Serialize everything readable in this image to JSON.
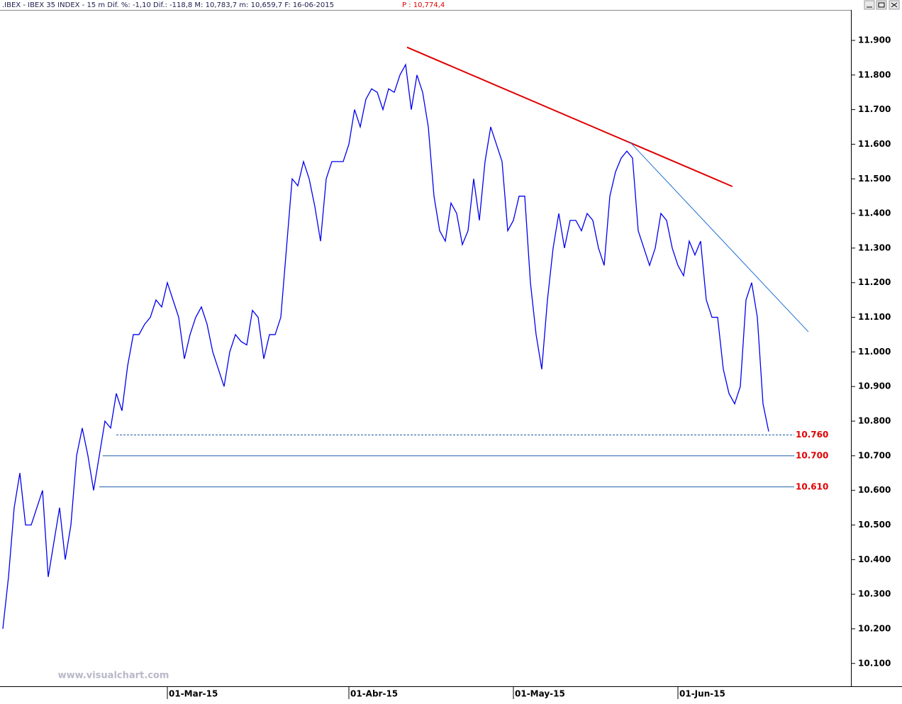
{
  "chart_data": {
    "type": "line",
    "title": ".IBEX - IBEX 35 INDEX -  15 m Dif. %: -1,10 Dif.: -118,8 M: 10,783,7 m: 10,659,7 F: 16-06-2015",
    "price_label": "P : 10,774,4",
    "watermark": "www.visualchart.com",
    "categories": [
      null,
      null,
      null,
      null,
      null,
      null,
      null,
      null,
      null,
      null,
      null,
      null,
      null,
      null,
      null,
      null,
      null,
      null,
      null,
      null,
      null,
      null,
      null,
      null,
      null,
      null,
      null,
      null,
      null,
      "01-Mar-15",
      null,
      null,
      null,
      null,
      null,
      null,
      null,
      null,
      null,
      null,
      null,
      null,
      null,
      null,
      null,
      null,
      null,
      null,
      null,
      null,
      null,
      null,
      null,
      null,
      null,
      null,
      null,
      null,
      null,
      null,
      null,
      "01-Abr-15",
      null,
      null,
      null,
      null,
      null,
      null,
      null,
      null,
      null,
      null,
      null,
      null,
      null,
      null,
      null,
      null,
      null,
      null,
      null,
      null,
      null,
      null,
      null,
      null,
      null,
      null,
      null,
      null,
      "01-May-15",
      null,
      null,
      null,
      null,
      null,
      null,
      null,
      null,
      null,
      null,
      null,
      null,
      null,
      null,
      null,
      null,
      null,
      null,
      null,
      null,
      null,
      null,
      null,
      null,
      null,
      null,
      null,
      null,
      "01-Jun-15",
      null,
      null,
      null,
      null,
      null,
      null,
      null,
      null,
      null,
      null,
      null,
      null,
      null,
      null,
      null,
      null
    ],
    "series": [
      {
        "name": "IBEX 35",
        "color": "#0000ee",
        "values": [
          10200,
          10350,
          10550,
          10650,
          10500,
          10500,
          10550,
          10600,
          10350,
          10450,
          10550,
          10400,
          10500,
          10700,
          10780,
          10700,
          10600,
          10700,
          10800,
          10780,
          10880,
          10830,
          10960,
          11050,
          11050,
          11080,
          11100,
          11150,
          11130,
          11200,
          11150,
          11100,
          10980,
          11050,
          11100,
          11130,
          11080,
          11000,
          10950,
          10900,
          11000,
          11050,
          11030,
          11020,
          11120,
          11100,
          10980,
          11050,
          11050,
          11100,
          11300,
          11500,
          11480,
          11550,
          11500,
          11420,
          11320,
          11500,
          11550,
          11550,
          11550,
          11600,
          11700,
          11650,
          11730,
          11760,
          11750,
          11700,
          11760,
          11750,
          11800,
          11830,
          11700,
          11800,
          11750,
          11650,
          11450,
          11350,
          11320,
          11430,
          11400,
          11310,
          11350,
          11500,
          11380,
          11550,
          11650,
          11600,
          11550,
          11350,
          11380,
          11450,
          11450,
          11200,
          11050,
          10950,
          11150,
          11300,
          11400,
          11300,
          11380,
          11380,
          11350,
          11400,
          11380,
          11300,
          11250,
          11450,
          11520,
          11560,
          11580,
          11560,
          11350,
          11300,
          11250,
          11300,
          11400,
          11380,
          11300,
          11250,
          11220,
          11320,
          11280,
          11320,
          11150,
          11100,
          11100,
          10950,
          10880,
          10850,
          10900,
          11150,
          11200,
          11100,
          10850,
          10770
        ]
      }
    ],
    "ylim": [
      10034,
      11988
    ],
    "yticks": [
      {
        "value": 10100,
        "label": "10.100"
      },
      {
        "value": 10200,
        "label": "10.200"
      },
      {
        "value": 10300,
        "label": "10.300"
      },
      {
        "value": 10400,
        "label": "10.400"
      },
      {
        "value": 10500,
        "label": "10.500"
      },
      {
        "value": 10600,
        "label": "10.600"
      },
      {
        "value": 10700,
        "label": "10.700"
      },
      {
        "value": 10800,
        "label": "10.800"
      },
      {
        "value": 10900,
        "label": "10.900"
      },
      {
        "value": 11000,
        "label": "11.000"
      },
      {
        "value": 11100,
        "label": "11.100"
      },
      {
        "value": 11200,
        "label": "11.200"
      },
      {
        "value": 11300,
        "label": "11.300"
      },
      {
        "value": 11400,
        "label": "11.400"
      },
      {
        "value": 11500,
        "label": "11.500"
      },
      {
        "value": 11600,
        "label": "11.600"
      },
      {
        "value": 11700,
        "label": "11.700"
      },
      {
        "value": 11800,
        "label": "11.800"
      },
      {
        "value": 11900,
        "label": "11.900"
      }
    ],
    "levels": [
      {
        "value": 10760,
        "label": "10.760",
        "style": "dashed",
        "start": 20
      },
      {
        "value": 10700,
        "label": "10.700",
        "style": "solid",
        "start": 17.6
      },
      {
        "value": 10610,
        "label": "10.610",
        "style": "solid",
        "start": 17
      }
    ],
    "trendlines": [
      {
        "color": "#e00000",
        "from": [
          71.25,
          11880
        ],
        "to": [
          128.6,
          11478
        ]
      },
      {
        "color": "#1e6fd0",
        "from": [
          110.5,
          11607
        ],
        "to": [
          142,
          11058
        ]
      }
    ]
  }
}
